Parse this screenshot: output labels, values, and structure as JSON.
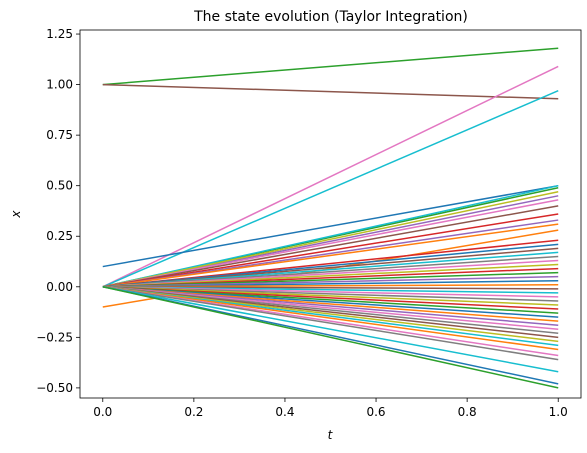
{
  "chart_data": {
    "type": "line",
    "title": "The state evolution (Taylor Integration)",
    "xlabel": "t",
    "ylabel": "x",
    "xlim": [
      -0.05,
      1.05
    ],
    "ylim": [
      -0.55,
      1.27
    ],
    "x_ticks": [
      "0.0",
      "0.2",
      "0.4",
      "0.6",
      "0.8",
      "1.0"
    ],
    "y_ticks": [
      "−0.50",
      "−0.25",
      "0.00",
      "0.25",
      "0.50",
      "0.75",
      "1.00",
      "1.25"
    ],
    "grid": false,
    "legend": "none",
    "x": [
      0.0,
      1.0
    ],
    "series": [
      {
        "color": "#2ca02c",
        "values": [
          1.0,
          1.18
        ]
      },
      {
        "color": "#8c564b",
        "values": [
          1.0,
          0.93
        ]
      },
      {
        "color": "#e377c2",
        "values": [
          0.0,
          1.09
        ]
      },
      {
        "color": "#17becf",
        "values": [
          0.0,
          0.97
        ]
      },
      {
        "color": "#1f77b4",
        "values": [
          0.1,
          0.5
        ]
      },
      {
        "color": "#ff7f0e",
        "values": [
          -0.1,
          0.28
        ]
      },
      {
        "color": "#2ca02c",
        "values": [
          0.0,
          0.49
        ]
      },
      {
        "color": "#17becf",
        "values": [
          0.0,
          0.5
        ]
      },
      {
        "color": "#9467bd",
        "values": [
          0.0,
          0.45
        ]
      },
      {
        "color": "#bcbd22",
        "values": [
          0.0,
          0.47
        ]
      },
      {
        "color": "#e377c2",
        "values": [
          0.0,
          0.43
        ]
      },
      {
        "color": "#8c564b",
        "values": [
          0.0,
          0.4
        ]
      },
      {
        "color": "#d62728",
        "values": [
          0.0,
          0.36
        ]
      },
      {
        "color": "#9467bd",
        "values": [
          0.0,
          0.33
        ]
      },
      {
        "color": "#ff7f0e",
        "values": [
          0.0,
          0.31
        ]
      },
      {
        "color": "#d62728",
        "values": [
          0.0,
          0.23
        ]
      },
      {
        "color": "#1f77b4",
        "values": [
          0.0,
          0.21
        ]
      },
      {
        "color": "#8c564b",
        "values": [
          0.0,
          0.19
        ]
      },
      {
        "color": "#17becf",
        "values": [
          0.0,
          0.17
        ]
      },
      {
        "color": "#7f7f7f",
        "values": [
          0.0,
          0.15
        ]
      },
      {
        "color": "#e377c2",
        "values": [
          0.0,
          0.13
        ]
      },
      {
        "color": "#bcbd22",
        "values": [
          0.0,
          0.11
        ]
      },
      {
        "color": "#d62728",
        "values": [
          0.0,
          0.09
        ]
      },
      {
        "color": "#2ca02c",
        "values": [
          0.0,
          0.07
        ]
      },
      {
        "color": "#9467bd",
        "values": [
          0.0,
          0.05
        ]
      },
      {
        "color": "#1f77b4",
        "values": [
          0.0,
          0.03
        ]
      },
      {
        "color": "#ff7f0e",
        "values": [
          0.0,
          0.01
        ]
      },
      {
        "color": "#8c564b",
        "values": [
          0.0,
          -0.01
        ]
      },
      {
        "color": "#17becf",
        "values": [
          0.0,
          -0.03
        ]
      },
      {
        "color": "#e377c2",
        "values": [
          0.0,
          -0.05
        ]
      },
      {
        "color": "#7f7f7f",
        "values": [
          0.0,
          -0.07
        ]
      },
      {
        "color": "#bcbd22",
        "values": [
          0.0,
          -0.09
        ]
      },
      {
        "color": "#d62728",
        "values": [
          0.0,
          -0.11
        ]
      },
      {
        "color": "#2ca02c",
        "values": [
          0.0,
          -0.13
        ]
      },
      {
        "color": "#1f77b4",
        "values": [
          0.0,
          -0.15
        ]
      },
      {
        "color": "#ff7f0e",
        "values": [
          0.0,
          -0.17
        ]
      },
      {
        "color": "#9467bd",
        "values": [
          0.0,
          -0.19
        ]
      },
      {
        "color": "#e377c2",
        "values": [
          0.0,
          -0.21
        ]
      },
      {
        "color": "#7f7f7f",
        "values": [
          0.0,
          -0.23
        ]
      },
      {
        "color": "#8c564b",
        "values": [
          0.0,
          -0.25
        ]
      },
      {
        "color": "#bcbd22",
        "values": [
          0.0,
          -0.27
        ]
      },
      {
        "color": "#17becf",
        "values": [
          0.0,
          -0.29
        ]
      },
      {
        "color": "#ff7f0e",
        "values": [
          0.0,
          -0.31
        ]
      },
      {
        "color": "#e377c2",
        "values": [
          0.0,
          -0.34
        ]
      },
      {
        "color": "#7f7f7f",
        "values": [
          0.0,
          -0.36
        ]
      },
      {
        "color": "#17becf",
        "values": [
          0.0,
          -0.42
        ]
      },
      {
        "color": "#1f77b4",
        "values": [
          0.0,
          -0.48
        ]
      },
      {
        "color": "#2ca02c",
        "values": [
          0.0,
          -0.5
        ]
      }
    ]
  }
}
